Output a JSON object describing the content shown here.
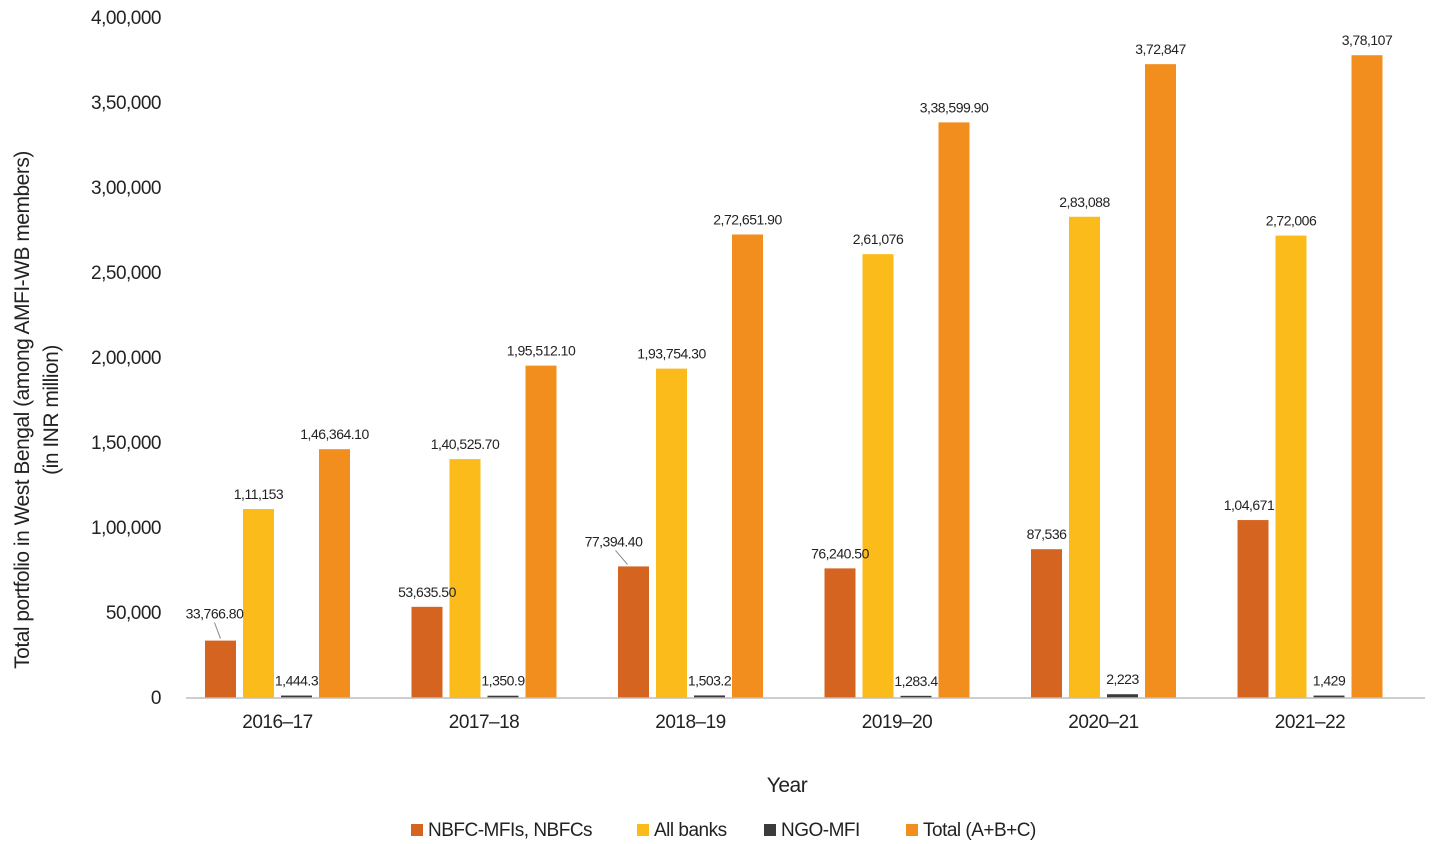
{
  "chart_data": {
    "type": "bar",
    "title": "",
    "xlabel": "Year",
    "ylabel": "Total portfolio in West Bengal  (among AMFI-WB members)",
    "ylabel_line2": "(in INR million)",
    "categories": [
      "2016–17",
      "2017–18",
      "2018–19",
      "2019–20",
      "2020–21",
      "2021–22"
    ],
    "ylim": [
      0,
      400000
    ],
    "yticks": [
      0,
      50000,
      100000,
      150000,
      200000,
      250000,
      300000,
      350000,
      400000
    ],
    "ytick_labels": [
      "0",
      "50,000",
      "1,00,000",
      "1,50,000",
      "2,00,000",
      "2,50,000",
      "3,00,000",
      "3,50,000",
      "4,00,000"
    ],
    "grid": false,
    "legend_position": "bottom",
    "series": [
      {
        "name": "NBFC-MFIs, NBFCs",
        "color": "#d4641f",
        "values": [
          33766.8,
          53635.5,
          77394.4,
          76240.5,
          87536,
          104671
        ],
        "labels": [
          "33,766.80",
          "53,635.50",
          "77,394.40",
          "76,240.50",
          "87,536",
          "1,04,671"
        ]
      },
      {
        "name": "All banks",
        "color": "#fbbb1a",
        "values": [
          111153,
          140525.7,
          193754.3,
          261076,
          283088,
          272006
        ],
        "labels": [
          "1,11,153",
          "1,40,525.70",
          "1,93,754.30",
          "2,61,076",
          "2,83,088",
          "2,72,006"
        ]
      },
      {
        "name": "NGO-MFI",
        "color": "#3b3b3b",
        "values": [
          1444.3,
          1350.9,
          1503.2,
          1283.4,
          2223,
          1429
        ],
        "labels": [
          "1,444.3",
          "1,350.9",
          "1,503.2",
          "1,283.4",
          "2,223",
          "1,429"
        ]
      },
      {
        "name": "Total (A+B+C)",
        "color": "#f28e1e",
        "values": [
          146364.1,
          195512.1,
          272651.9,
          338599.9,
          372847,
          378107
        ],
        "labels": [
          "1,46,364.10",
          "1,95,512.10",
          "2,72,651.90",
          "3,38,599.90",
          "3,72,847",
          "3,78,107"
        ]
      }
    ]
  }
}
